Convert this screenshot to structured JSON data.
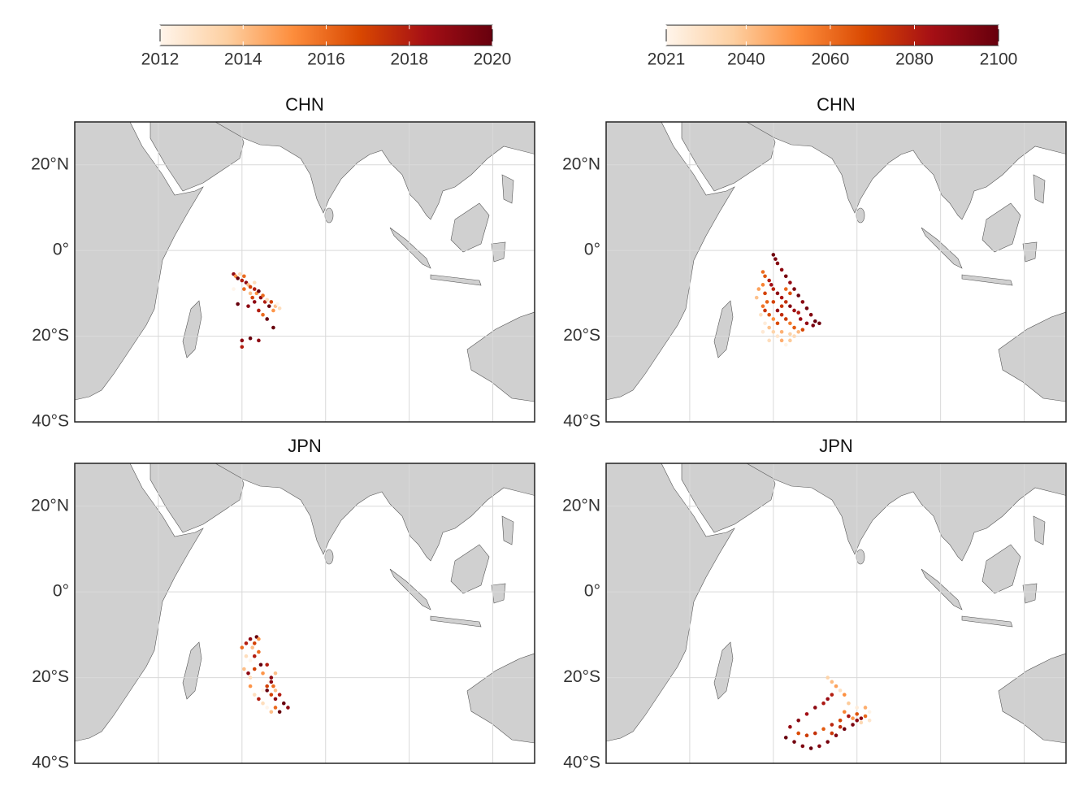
{
  "colorbars": [
    {
      "lim": [
        2012,
        2020
      ],
      "ticks": [
        2012,
        2014,
        2016,
        2018,
        2020
      ]
    },
    {
      "lim": [
        2021,
        2100
      ],
      "ticks": [
        2021,
        2040,
        2060,
        2080,
        2100
      ]
    }
  ],
  "colormap": [
    "#fff5eb",
    "#fdd0a2",
    "#fd8d3c",
    "#d94801",
    "#a50f15",
    "#67000d"
  ],
  "chart_data": [
    {
      "type": "scatter",
      "title": "CHN",
      "colorbar": 0,
      "xlim": [
        20,
        130
      ],
      "ylim": [
        -40,
        30
      ],
      "xticks": [
        40,
        60,
        80,
        100,
        120
      ],
      "yticks": [
        {
          "value": 20,
          "label": "20°N"
        },
        {
          "value": 0,
          "label": "0°"
        },
        {
          "value": -20,
          "label": "20°S"
        },
        {
          "value": -40,
          "label": "40°S"
        }
      ],
      "grid": true,
      "x": [
        58,
        58.5,
        59,
        59.5,
        60,
        60.5,
        61,
        61.5,
        62,
        63,
        63.5,
        64,
        64.5,
        65,
        65.5,
        66,
        66.5,
        67,
        67.5,
        68,
        68.5,
        69,
        63,
        64,
        65,
        66,
        62.5,
        61.5,
        59,
        60,
        60,
        62,
        64,
        67.5,
        60.5,
        62,
        58,
        63
      ],
      "y": [
        -5.5,
        -6,
        -6.5,
        -5.5,
        -7,
        -6,
        -7.5,
        -8,
        -8.5,
        -9,
        -10,
        -9.5,
        -11,
        -10.5,
        -12,
        -11.5,
        -13,
        -12,
        -14,
        -13,
        -12.5,
        -13.5,
        -12,
        -14,
        -15,
        -16,
        -11,
        -13,
        -12.5,
        -21,
        -22.5,
        -20.5,
        -21,
        -18,
        -9,
        -10,
        -9,
        -7.5
      ],
      "color": [
        2019,
        2015,
        2020,
        2013,
        2018,
        2016,
        2019,
        2014,
        2017,
        2018,
        2015,
        2020,
        2019,
        2016,
        2018,
        2013,
        2020,
        2017,
        2015,
        2014,
        2012,
        2013,
        2019,
        2018,
        2016,
        2020,
        2017,
        2019,
        2020,
        2019,
        2018,
        2020,
        2019,
        2020,
        2016,
        2014,
        2012,
        2013
      ]
    },
    {
      "type": "scatter",
      "title": "JPN",
      "colorbar": 0,
      "xlim": [
        20,
        130
      ],
      "ylim": [
        -40,
        30
      ],
      "xticks": [
        40,
        60,
        80,
        100,
        120
      ],
      "yticks": [
        {
          "value": 20,
          "label": "20°N"
        },
        {
          "value": 0,
          "label": "0°"
        },
        {
          "value": -20,
          "label": "20°S"
        },
        {
          "value": -40,
          "label": "40°S"
        }
      ],
      "grid": true,
      "x": [
        60,
        61,
        62,
        62.5,
        63,
        63.5,
        64,
        61,
        62,
        63,
        64,
        60.5,
        61.5,
        62,
        63,
        64.5,
        65,
        66,
        66.5,
        67,
        67.5,
        68,
        66,
        67,
        68,
        69,
        70,
        71,
        65,
        66,
        67,
        68,
        69,
        62,
        63,
        64,
        65,
        66,
        67,
        68
      ],
      "y": [
        -13,
        -12,
        -11,
        -13,
        -12,
        -10.5,
        -11,
        -15,
        -16,
        -15,
        -14,
        -18,
        -19,
        -20,
        -18,
        -17,
        -19,
        -17,
        -21,
        -20,
        -22,
        -19,
        -23,
        -24,
        -25,
        -24,
        -26,
        -27,
        -26,
        -27,
        -28,
        -27,
        -28,
        -22,
        -24,
        -25,
        -23,
        -22,
        -21,
        -23
      ],
      "color": [
        2016,
        2018,
        2019,
        2014,
        2017,
        2020,
        2015,
        2013,
        2012,
        2018,
        2016,
        2014,
        2019,
        2013,
        2017,
        2020,
        2015,
        2018,
        2012,
        2019,
        2016,
        2014,
        2020,
        2017,
        2019,
        2018,
        2020,
        2019,
        2013,
        2012,
        2014,
        2016,
        2020,
        2015,
        2013,
        2018,
        2012,
        2017,
        2019,
        2014
      ]
    },
    {
      "type": "scatter",
      "title": "CHN",
      "colorbar": 1,
      "xlim": [
        20,
        130
      ],
      "ylim": [
        -40,
        30
      ],
      "xticks": [
        40,
        60,
        80,
        100,
        120
      ],
      "yticks": [
        {
          "value": 20,
          "label": "20°N"
        },
        {
          "value": 0,
          "label": "0°"
        },
        {
          "value": -20,
          "label": "20°S"
        },
        {
          "value": -40,
          "label": "40°S"
        }
      ],
      "grid": true,
      "x": [
        60,
        60.5,
        61,
        62,
        63,
        64,
        65,
        66,
        67,
        68,
        69,
        70,
        71,
        69.5,
        68,
        66.5,
        59,
        59.5,
        60,
        61,
        62,
        63,
        64,
        65,
        66,
        60,
        61,
        62,
        57.5,
        58,
        57.5,
        58,
        58.5,
        57.5,
        58,
        59,
        60,
        61,
        63,
        64,
        65,
        67,
        62,
        63,
        64,
        57,
        58,
        59,
        60,
        61,
        62,
        63,
        64,
        65,
        66,
        57.5,
        59,
        62,
        64,
        56,
        56.5
      ],
      "y": [
        -1,
        -2,
        -3,
        -4.5,
        -6,
        -7.5,
        -9,
        -10.5,
        -12,
        -13.5,
        -15,
        -16.5,
        -17,
        -17.5,
        -17,
        -16,
        -7,
        -8,
        -9,
        -10,
        -11,
        -12,
        -13,
        -14,
        -14.5,
        -12,
        -14,
        -15,
        -5,
        -6,
        -8,
        -10,
        -12,
        -13,
        -14,
        -15,
        -16,
        -17,
        -16,
        -17,
        -18,
        -18.5,
        -13,
        -9,
        -10,
        -15,
        -17,
        -18,
        -19,
        -20,
        -21,
        -22,
        -21,
        -20,
        -19,
        -19,
        -21,
        -19,
        -19.5,
        -11,
        -9
      ],
      "color": [
        2098,
        2095,
        2092,
        2090,
        2096,
        2088,
        2094,
        2099,
        2091,
        2097,
        2093,
        2100,
        2098,
        2095,
        2089,
        2087,
        2080,
        2085,
        2078,
        2090,
        2083,
        2075,
        2092,
        2086,
        2082,
        2070,
        2088,
        2076,
        2060,
        2065,
        2055,
        2070,
        2062,
        2058,
        2073,
        2066,
        2052,
        2068,
        2072,
        2057,
        2064,
        2069,
        2074,
        2061,
        2067,
        2030,
        2025,
        2040,
        2035,
        2028,
        2045,
        2022,
        2038,
        2033,
        2042,
        2026,
        2031,
        2044,
        2036,
        2040,
        2048
      ]
    },
    {
      "type": "scatter",
      "title": "JPN",
      "colorbar": 1,
      "xlim": [
        20,
        130
      ],
      "ylim": [
        -40,
        30
      ],
      "xticks": [
        40,
        60,
        80,
        100,
        120
      ],
      "yticks": [
        {
          "value": 20,
          "label": "20°N"
        },
        {
          "value": 0,
          "label": "0°"
        },
        {
          "value": -20,
          "label": "20°S"
        },
        {
          "value": -40,
          "label": "40°S"
        }
      ],
      "grid": true,
      "x": [
        63,
        65,
        67,
        69,
        71,
        73,
        75,
        77,
        79,
        80,
        81,
        64,
        66,
        68,
        70,
        72,
        73,
        74,
        66,
        68,
        70,
        72,
        74,
        76,
        78,
        80,
        82,
        76,
        74,
        73,
        74,
        75,
        76,
        77,
        78,
        80,
        82,
        83,
        79,
        77,
        81,
        83
      ],
      "y": [
        -34,
        -35,
        -36,
        -36.5,
        -36,
        -35,
        -33.5,
        -32,
        -31,
        -30,
        -29.5,
        -31.5,
        -30,
        -28.5,
        -27,
        -26,
        -25,
        -24,
        -33,
        -33.5,
        -33,
        -32,
        -31,
        -30,
        -29,
        -28.5,
        -29,
        -31.5,
        -33,
        -20,
        -21,
        -22,
        -23,
        -24,
        -26,
        -27,
        -27,
        -28,
        -29.5,
        -28,
        -30.5,
        -30
      ],
      "color": [
        2100,
        2097,
        2094,
        2099,
        2092,
        2096,
        2093,
        2098,
        2095,
        2091,
        2090,
        2088,
        2092,
        2085,
        2090,
        2082,
        2087,
        2080,
        2068,
        2072,
        2075,
        2064,
        2078,
        2070,
        2083,
        2066,
        2061,
        2076,
        2073,
        2035,
        2042,
        2048,
        2030,
        2052,
        2038,
        2025,
        2045,
        2022,
        2050,
        2055,
        2033,
        2028
      ]
    }
  ]
}
